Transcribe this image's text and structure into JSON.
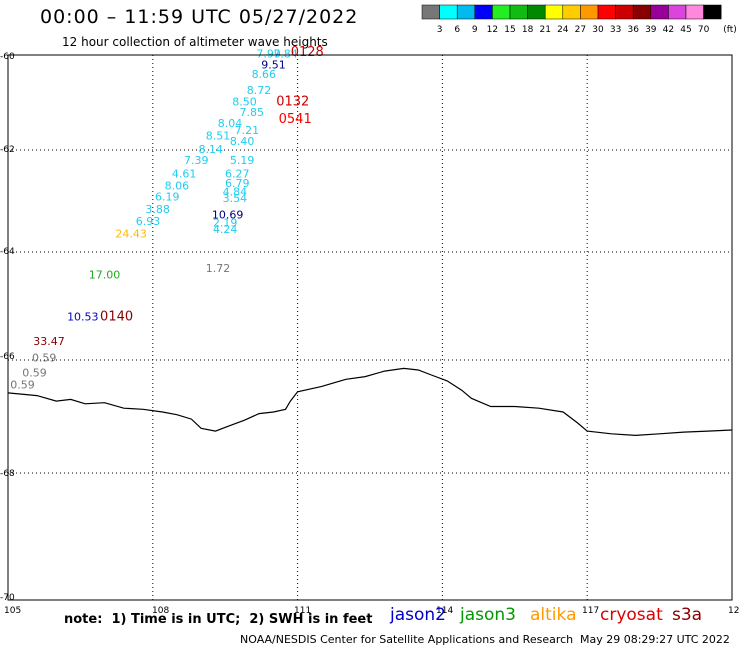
{
  "title": "00:00 – 11:59 UTC 05/27/2022",
  "subtitle": "12 hour collection of altimeter wave heights",
  "colorbar": {
    "colors": [
      "#777777",
      "#00ffff",
      "#00bbee",
      "#0000ff",
      "#22ee22",
      "#11bb11",
      "#008800",
      "#ffff00",
      "#ffcc00",
      "#ff9900",
      "#ff0000",
      "#cc0000",
      "#880000",
      "#990099",
      "#dd44dd",
      "#ff88dd",
      "#000000"
    ],
    "labels": [
      "3",
      "6",
      "9",
      "12",
      "15",
      "18",
      "21",
      "24",
      "27",
      "30",
      "33",
      "36",
      "39",
      "42",
      "45",
      "70"
    ],
    "unit": "(ft)"
  },
  "axes": {
    "lon_ticks": [
      "105",
      "108",
      "111",
      "114",
      "117",
      "120"
    ],
    "lat_ticks": [
      "-60",
      "-62",
      "-64",
      "-66",
      "-68",
      "-70"
    ]
  },
  "observations": [
    {
      "text": "7.99",
      "color": "#22ccee",
      "lon": 110.4,
      "lat": -60.05
    },
    {
      "text": "7.84",
      "color": "#22ccee",
      "lon": 110.75,
      "lat": -60.05
    },
    {
      "text": "0128",
      "color": "#cc0000",
      "lon": 111.2,
      "lat": -60.02
    },
    {
      "text": "9.51",
      "color": "#000088",
      "lon": 110.5,
      "lat": -60.25
    },
    {
      "text": "8.66",
      "color": "#22ccee",
      "lon": 110.3,
      "lat": -60.42
    },
    {
      "text": "8.72",
      "color": "#22ccee",
      "lon": 110.2,
      "lat": -60.72
    },
    {
      "text": "8.50",
      "color": "#22ccee",
      "lon": 109.9,
      "lat": -60.93
    },
    {
      "text": "0132",
      "color": "#cc0000",
      "lon": 110.9,
      "lat": -60.93
    },
    {
      "text": "7.85",
      "color": "#22ccee",
      "lon": 110.05,
      "lat": -61.12
    },
    {
      "text": "0541",
      "color": "#ff0000",
      "lon": 110.95,
      "lat": -61.25
    },
    {
      "text": "8.04",
      "color": "#22ccee",
      "lon": 109.6,
      "lat": -61.32
    },
    {
      "text": "7.21",
      "color": "#22ccee",
      "lon": 109.95,
      "lat": -61.45
    },
    {
      "text": "8.51",
      "color": "#22ccee",
      "lon": 109.35,
      "lat": -61.55
    },
    {
      "text": "8.40",
      "color": "#22ccee",
      "lon": 109.85,
      "lat": -61.65
    },
    {
      "text": "8.14",
      "color": "#22ccee",
      "lon": 109.2,
      "lat": -61.8
    },
    {
      "text": "7.39",
      "color": "#22ccee",
      "lon": 108.9,
      "lat": -62.0
    },
    {
      "text": "5.19",
      "color": "#22ccee",
      "lon": 109.85,
      "lat": -62.0
    },
    {
      "text": "4.61",
      "color": "#22ccee",
      "lon": 108.65,
      "lat": -62.25
    },
    {
      "text": "6.27",
      "color": "#22ccee",
      "lon": 109.75,
      "lat": -62.25
    },
    {
      "text": "8.06",
      "color": "#22ccee",
      "lon": 108.5,
      "lat": -62.47
    },
    {
      "text": "6.79",
      "color": "#22ccee",
      "lon": 109.75,
      "lat": -62.42
    },
    {
      "text": "4.84",
      "color": "#22ccee",
      "lon": 109.7,
      "lat": -62.58
    },
    {
      "text": "6.19",
      "color": "#22ccee",
      "lon": 108.3,
      "lat": -62.67
    },
    {
      "text": "3.54",
      "color": "#22ccee",
      "lon": 109.7,
      "lat": -62.7
    },
    {
      "text": "3.88",
      "color": "#22ccee",
      "lon": 108.1,
      "lat": -62.9
    },
    {
      "text": "10.69",
      "color": "#000088",
      "lon": 109.55,
      "lat": -63.0
    },
    {
      "text": "6.93",
      "color": "#22ccee",
      "lon": 107.9,
      "lat": -63.12
    },
    {
      "text": "2.19",
      "color": "#22ccee",
      "lon": 109.5,
      "lat": -63.15
    },
    {
      "text": "4.24",
      "color": "#22ccee",
      "lon": 109.5,
      "lat": -63.27
    },
    {
      "text": "24.43",
      "color": "#ffbb00",
      "lon": 107.55,
      "lat": -63.35
    },
    {
      "text": "1.72",
      "color": "#777777",
      "lon": 109.35,
      "lat": -63.98
    },
    {
      "text": "17.00",
      "color": "#22aa22",
      "lon": 107.0,
      "lat": -64.1
    },
    {
      "text": "10.53",
      "color": "#0000cc",
      "lon": 106.55,
      "lat": -64.87
    },
    {
      "text": "0140",
      "color": "#880000",
      "lon": 107.25,
      "lat": -64.87
    },
    {
      "text": "33.47",
      "color": "#880000",
      "lon": 105.85,
      "lat": -65.32
    },
    {
      "text": "0.59",
      "color": "#777777",
      "lon": 105.75,
      "lat": -65.62
    },
    {
      "text": "0.59",
      "color": "#777777",
      "lon": 105.55,
      "lat": -65.9
    },
    {
      "text": "0.59",
      "color": "#777777",
      "lon": 105.3,
      "lat": -66.12
    }
  ],
  "coastline": [
    [
      105,
      -66.2
    ],
    [
      105.6,
      -66.25
    ],
    [
      106.0,
      -66.35
    ],
    [
      106.3,
      -66.32
    ],
    [
      106.6,
      -66.4
    ],
    [
      107.0,
      -66.38
    ],
    [
      107.4,
      -66.48
    ],
    [
      107.8,
      -66.5
    ],
    [
      108.2,
      -66.55
    ],
    [
      108.5,
      -66.6
    ],
    [
      108.8,
      -66.68
    ],
    [
      109.0,
      -66.85
    ],
    [
      109.3,
      -66.9
    ],
    [
      109.6,
      -66.8
    ],
    [
      109.9,
      -66.7
    ],
    [
      110.2,
      -66.58
    ],
    [
      110.5,
      -66.55
    ],
    [
      110.75,
      -66.5
    ],
    [
      110.85,
      -66.35
    ],
    [
      111.0,
      -66.18
    ],
    [
      111.5,
      -66.08
    ],
    [
      112.0,
      -65.95
    ],
    [
      112.4,
      -65.9
    ],
    [
      112.8,
      -65.8
    ],
    [
      113.2,
      -65.75
    ],
    [
      113.5,
      -65.78
    ],
    [
      113.8,
      -65.88
    ],
    [
      114.1,
      -65.98
    ],
    [
      114.4,
      -66.15
    ],
    [
      114.6,
      -66.3
    ],
    [
      115.0,
      -66.45
    ],
    [
      115.5,
      -66.45
    ],
    [
      116.0,
      -66.48
    ],
    [
      116.5,
      -66.55
    ],
    [
      116.8,
      -66.75
    ],
    [
      117.0,
      -66.9
    ],
    [
      117.5,
      -66.95
    ],
    [
      118.0,
      -66.98
    ],
    [
      118.5,
      -66.95
    ],
    [
      119.0,
      -66.92
    ],
    [
      119.5,
      -66.9
    ],
    [
      120.0,
      -66.88
    ]
  ],
  "note": "note:  1) Time is in UTC;  2) SWH is in feet",
  "satellites": [
    {
      "name": "jason2",
      "color": "#0000cc"
    },
    {
      "name": "jason3",
      "color": "#009900"
    },
    {
      "name": "altika",
      "color": "#ff9900"
    },
    {
      "name": "cryosat",
      "color": "#dd0000"
    },
    {
      "name": "s3a",
      "color": "#880000"
    }
  ],
  "footer_left": "NOAA/NESDIS Center for Satellite Applications and Research",
  "footer_right": "May 29 08:29:27 UTC 2022"
}
